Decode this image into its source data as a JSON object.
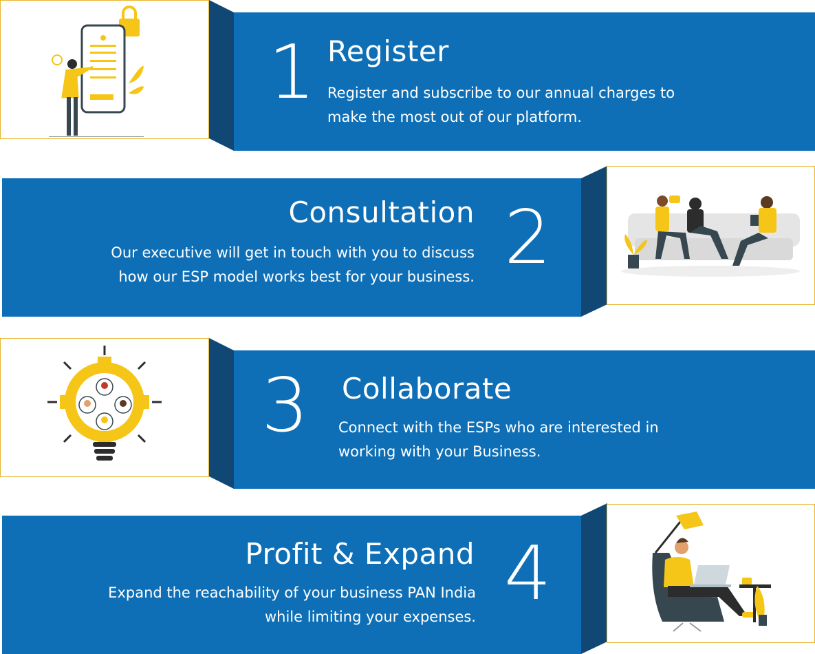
{
  "colors": {
    "band": "#0e6fb6",
    "fold": "#114775",
    "accent": "#f5c518",
    "frame": "#e6b52e"
  },
  "steps": [
    {
      "number": "1",
      "title": "Register",
      "desc_line1": "Register and subscribe to our annual charges to",
      "desc_line2": "make the most out of our platform.",
      "illustration": "phone-registration-illustration"
    },
    {
      "number": "2",
      "title": "Consultation",
      "desc_line1": "Our executive will get in touch with you to discuss",
      "desc_line2": "how our ESP model works best for your business.",
      "illustration": "meeting-people-illustration"
    },
    {
      "number": "3",
      "title": "Collaborate",
      "desc_line1": "Connect with the ESPs who are interested in",
      "desc_line2": "working with your Business.",
      "illustration": "lightbulb-network-illustration"
    },
    {
      "number": "4",
      "title": "Profit & Expand",
      "desc_line1": "Expand the reachability of your business PAN India",
      "desc_line2": "while limiting your expenses.",
      "illustration": "person-laptop-illustration"
    }
  ]
}
